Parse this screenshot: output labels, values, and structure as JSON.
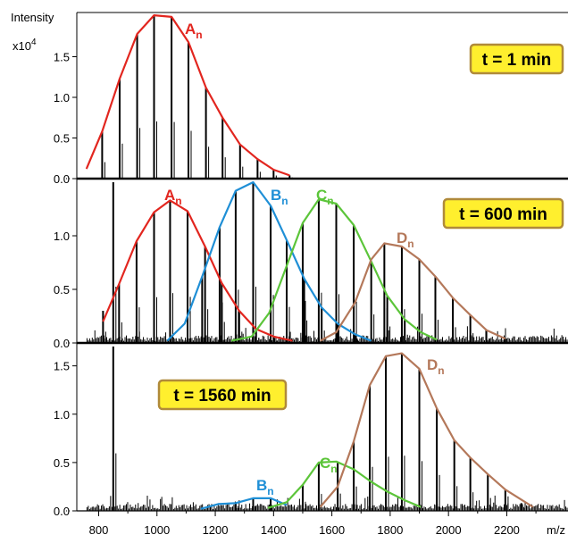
{
  "chart_data": {
    "type": "line",
    "y_axis_title": "Intensity",
    "y_multiplier_base": "x10",
    "y_multiplier_exp": "4",
    "x_axis_unit": "m/z",
    "x_range": [
      725,
      2410
    ],
    "x_ticks": [
      "800",
      "1000",
      "1200",
      "1400",
      "1600",
      "1800",
      "2000",
      "2200"
    ],
    "x_tick_values": [
      800,
      1000,
      1200,
      1400,
      1600,
      1800,
      2000,
      2200
    ],
    "colors": {
      "A": "#e2261f",
      "B": "#1f8fd6",
      "C": "#5cc53a",
      "D": "#b4785a",
      "label_bg": "#ffef2e",
      "label_border": "#b08a3a",
      "sticks": "#000000"
    },
    "panels": [
      {
        "label": "t = 1 min",
        "ylim": [
          0,
          2.0
        ],
        "y_ticks": [
          "0.0",
          "0.5",
          "1.0",
          "1.5"
        ],
        "y_tick_values": [
          0,
          0.5,
          1.0,
          1.5
        ],
        "envelopes": [
          {
            "base": "A",
            "sub": "n",
            "color": "#e2261f",
            "x": [
              758,
              812,
              872,
              932,
              990,
              1050,
              1108,
              1168,
              1225,
              1285,
              1345,
              1400,
              1455
            ],
            "y": [
              0.12,
              0.58,
              1.23,
              1.78,
              2.01,
              1.99,
              1.68,
              1.12,
              0.75,
              0.42,
              0.24,
              0.11,
              0.04
            ]
          }
        ],
        "peaks_x": [
          812,
          872,
          932,
          990,
          1050,
          1108,
          1168,
          1225,
          1285,
          1345,
          1400,
          1455
        ],
        "peaks_y": [
          0.58,
          1.23,
          1.78,
          2.01,
          1.99,
          1.68,
          1.12,
          0.75,
          0.42,
          0.24,
          0.11,
          0.04
        ],
        "noise": 0.0
      },
      {
        "label": "t = 600 min",
        "ylim": [
          0,
          1.5
        ],
        "y_ticks": [
          "0.0",
          "0.5",
          "1.0"
        ],
        "y_tick_values": [
          0,
          0.5,
          1.0
        ],
        "envelopes": [
          {
            "base": "A",
            "sub": "n",
            "color": "#e2261f",
            "x": [
              815,
              870,
              930,
              990,
              1045,
              1105,
              1165,
              1222,
              1282,
              1340,
              1400,
              1465
            ],
            "y": [
              0.2,
              0.55,
              0.95,
              1.22,
              1.33,
              1.23,
              0.9,
              0.56,
              0.3,
              0.13,
              0.06,
              0.02
            ]
          },
          {
            "base": "B",
            "sub": "n",
            "color": "#1f8fd6",
            "x": [
              1035,
              1095,
              1155,
              1215,
              1270,
              1330,
              1390,
              1445,
              1505,
              1565,
              1620,
              1680,
              1735
            ],
            "y": [
              0.02,
              0.18,
              0.62,
              1.08,
              1.42,
              1.5,
              1.28,
              0.96,
              0.6,
              0.33,
              0.18,
              0.08,
              0.02
            ]
          },
          {
            "base": "C",
            "sub": "n",
            "color": "#5cc53a",
            "x": [
              1255,
              1325,
              1385,
              1445,
              1500,
              1555,
              1615,
              1675,
              1735,
              1790,
              1850,
              1905,
              1960
            ],
            "y": [
              0.02,
              0.06,
              0.28,
              0.72,
              1.12,
              1.34,
              1.3,
              1.1,
              0.76,
              0.44,
              0.22,
              0.1,
              0.03
            ]
          },
          {
            "base": "D",
            "sub": "n",
            "color": "#b4785a",
            "x": [
              1560,
              1615,
              1680,
              1735,
              1780,
              1840,
              1900,
              1955,
              2015,
              2075,
              2130,
              2195
            ],
            "y": [
              0.02,
              0.1,
              0.38,
              0.78,
              0.93,
              0.9,
              0.78,
              0.62,
              0.42,
              0.26,
              0.12,
              0.04
            ]
          }
        ],
        "peaks_x": [
          815,
          850,
          870,
          930,
          990,
          1045,
          1105,
          1155,
          1165,
          1215,
          1222,
          1270,
          1282,
          1330,
          1340,
          1390,
          1400,
          1445,
          1500,
          1505,
          1555,
          1565,
          1615,
          1620,
          1675,
          1680,
          1735,
          1780,
          1790,
          1840,
          1850,
          1900,
          1955,
          2015,
          2075,
          2130,
          2195
        ],
        "peaks_y": [
          0.3,
          1.5,
          0.55,
          0.95,
          1.22,
          1.33,
          1.23,
          0.62,
          0.9,
          1.08,
          0.56,
          1.42,
          0.3,
          1.5,
          0.13,
          1.28,
          0.06,
          0.96,
          1.12,
          0.6,
          1.34,
          0.33,
          1.3,
          0.18,
          1.1,
          0.08,
          0.76,
          0.93,
          0.44,
          0.9,
          0.22,
          0.78,
          0.62,
          0.42,
          0.26,
          0.12,
          0.04
        ],
        "noise": 0.06
      },
      {
        "label": "t = 1560 min",
        "ylim": [
          0,
          1.7
        ],
        "y_ticks": [
          "0.0",
          "0.5",
          "1.0",
          "1.5"
        ],
        "y_tick_values": [
          0,
          0.5,
          1.0,
          1.5
        ],
        "envelopes": [
          {
            "base": "B",
            "sub": "n",
            "color": "#1f8fd6",
            "x": [
              1150,
              1210,
              1270,
              1330,
              1390,
              1445
            ],
            "y": [
              0.02,
              0.07,
              0.08,
              0.13,
              0.13,
              0.06
            ]
          },
          {
            "base": "C",
            "sub": "n",
            "color": "#5cc53a",
            "x": [
              1380,
              1445,
              1500,
              1555,
              1615,
              1675,
              1735,
              1790,
              1850,
              1905
            ],
            "y": [
              0.03,
              0.09,
              0.27,
              0.5,
              0.51,
              0.43,
              0.3,
              0.2,
              0.11,
              0.04
            ]
          },
          {
            "base": "D",
            "sub": "n",
            "color": "#b4785a",
            "x": [
              1560,
              1620,
              1675,
              1730,
              1785,
              1840,
              1900,
              1960,
              2020,
              2075,
              2135,
              2195,
              2290
            ],
            "y": [
              0.04,
              0.25,
              0.72,
              1.3,
              1.6,
              1.63,
              1.47,
              1.06,
              0.73,
              0.55,
              0.38,
              0.22,
              0.04
            ]
          }
        ],
        "peaks_x": [
          850,
          1270,
          1330,
          1390,
          1500,
          1555,
          1620,
          1675,
          1730,
          1785,
          1840,
          1900,
          1960,
          2020,
          2075,
          2135,
          2195,
          2250
        ],
        "peaks_y": [
          1.7,
          0.08,
          0.13,
          0.13,
          0.27,
          0.5,
          0.51,
          0.72,
          1.3,
          1.6,
          1.63,
          1.47,
          1.06,
          0.73,
          0.55,
          0.38,
          0.22,
          0.08
        ],
        "noise": 0.06
      }
    ]
  }
}
